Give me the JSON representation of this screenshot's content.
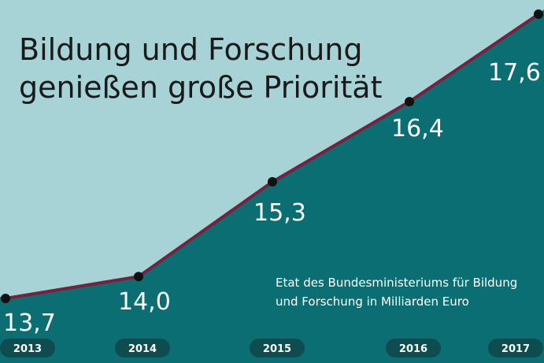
{
  "title_lines": [
    "Bildung und Forschung",
    "genießen große Priorität"
  ],
  "note_lines": [
    "Etat des Bundesministeriums für Bildung",
    "und Forschung in Milliarden Euro"
  ],
  "colors": {
    "sky": "#a8d3d6",
    "area": "#0b6e72",
    "line": "#7a1f3d",
    "point": "#111111",
    "pill": "#0e4c4f"
  },
  "chart_data": {
    "type": "area",
    "title": "Bildung und Forschung genießen große Priorität",
    "categories": [
      "2013",
      "2014",
      "2015",
      "2016",
      "2017"
    ],
    "values": [
      13.7,
      14.0,
      15.3,
      16.4,
      17.6
    ],
    "value_labels": [
      "13,7",
      "14,0",
      "15,3",
      "16,4",
      "17,6"
    ],
    "note": "Etat des Bundesministeriums für Bildung und Forschung in Milliarden Euro"
  }
}
